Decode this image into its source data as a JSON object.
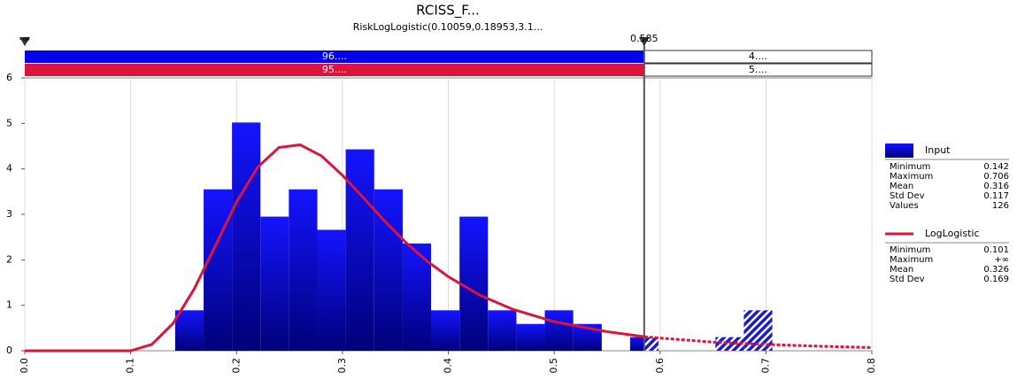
{
  "chart_data": {
    "type": "histogram",
    "title": "RCISS_F...",
    "subtitle": "RiskLogLogistic(0.10059,0.18953,3.1...",
    "bins": [
      0.142,
      0.1689,
      0.1957,
      0.2226,
      0.2494,
      0.2763,
      0.3031,
      0.33,
      0.3569,
      0.3837,
      0.4106,
      0.4374,
      0.4643,
      0.4911,
      0.518,
      0.5449,
      0.5717,
      0.5986,
      0.6254,
      0.6523,
      0.6791,
      0.706
    ],
    "values": [
      0.89,
      3.55,
      5.02,
      2.95,
      3.55,
      2.66,
      4.43,
      3.55,
      2.36,
      0.89,
      2.95,
      0.89,
      0.59,
      0.89,
      0.59,
      0,
      0.3,
      0,
      0,
      0.3,
      0.89
    ],
    "color": "#0000ee",
    "xlim": [
      0,
      0.8
    ],
    "xticks": [
      {
        "value": 0,
        "label": "0.0"
      },
      0.1,
      0.2,
      0.3,
      0.4,
      0.5,
      0.6,
      0.7,
      0.8
    ],
    "ylim": [
      0,
      6
    ],
    "yticks": [
      0,
      1,
      2,
      3,
      4,
      5,
      6
    ],
    "grid": true,
    "fit": {
      "name": "LogLogistic",
      "color": "#dc143c",
      "x": [
        0,
        0.1,
        0.12,
        0.14,
        0.16,
        0.18,
        0.2,
        0.22,
        0.24,
        0.26,
        0.28,
        0.3,
        0.32,
        0.34,
        0.36,
        0.38,
        0.4,
        0.43,
        0.46,
        0.5,
        0.55,
        0.585,
        0.6,
        0.65,
        0.7,
        0.75,
        0.8
      ],
      "values": [
        0,
        0,
        0.14,
        0.6,
        1.36,
        2.31,
        3.27,
        4.04,
        4.47,
        4.53,
        4.29,
        3.86,
        3.36,
        2.85,
        2.38,
        1.97,
        1.63,
        1.22,
        0.92,
        0.64,
        0.42,
        0.31,
        0.28,
        0.19,
        0.14,
        0.1,
        0.07
      ]
    },
    "marker": {
      "left_label": "-∞",
      "value": 0.585
    },
    "bands": [
      {
        "color": "#0000ee",
        "left": "96....",
        "right": "4...."
      },
      {
        "color": "#dc143c",
        "left": "95....",
        "right": "5...."
      }
    ],
    "legend": [
      {
        "name": "Input",
        "stats": [
          [
            "Minimum",
            0.142
          ],
          [
            "Maximum",
            0.706
          ],
          [
            "Mean",
            0.316
          ],
          [
            "Std Dev",
            0.117
          ],
          [
            "Values",
            126
          ]
        ]
      },
      {
        "name": "LogLogistic",
        "stats": [
          [
            "Minimum",
            0.101
          ],
          [
            "Maximum",
            "+∞"
          ],
          [
            "Mean",
            0.326
          ],
          [
            "Std Dev",
            0.169
          ]
        ]
      }
    ]
  }
}
